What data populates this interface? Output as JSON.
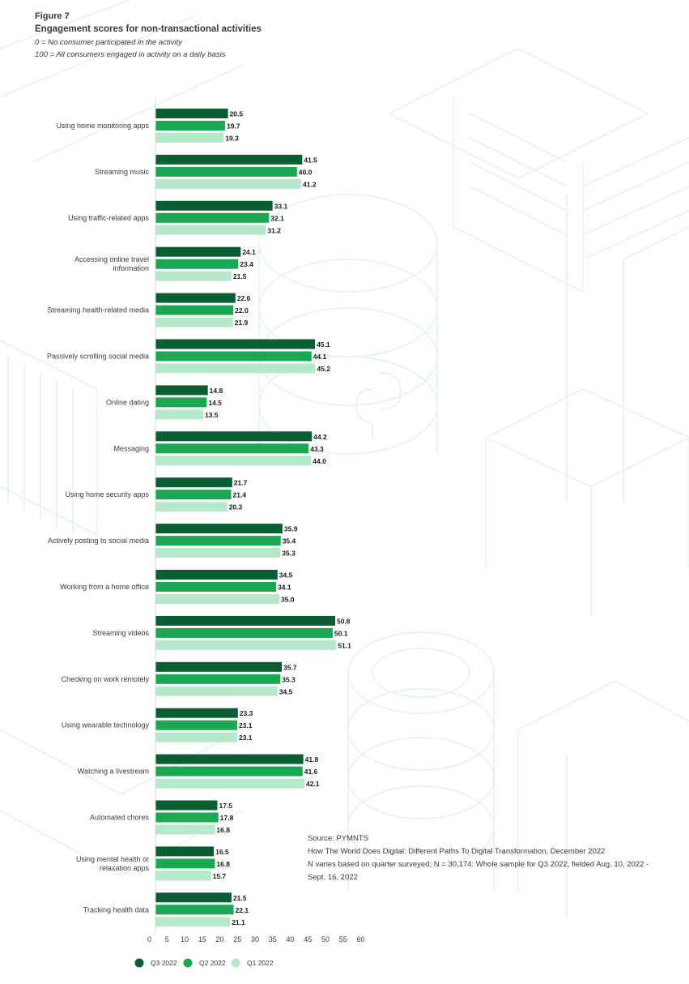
{
  "figure": {
    "number": "Figure 7",
    "title": "Engagement scores for non-transactional activities",
    "notes": [
      "0 = No consumer participated in the activity",
      "100 = All consumers engaged in activity on a daily basis"
    ]
  },
  "source": {
    "lines": [
      "Source: PYMNTS",
      "How The World Does Digital: Different Paths To Digital Transformation, December 2022",
      "N varies based on quarter surveyed; N = 30,174: Whole sample for Q3 2022, fielded Aug. 10, 2022  -",
      "Sept. 16, 2022"
    ]
  },
  "chart_data": {
    "type": "bar",
    "orientation": "horizontal",
    "title": "Engagement scores for non-transactional activities",
    "xlabel": "",
    "ylabel": "",
    "xlim": [
      0,
      60
    ],
    "xticks": [
      0,
      5,
      10,
      15,
      20,
      25,
      30,
      35,
      40,
      45,
      50,
      55,
      60
    ],
    "grid": false,
    "legend_position": "bottom-left",
    "categories": [
      [
        "Using home monitoring apps"
      ],
      [
        "Streaming music"
      ],
      [
        "Using traffic-related apps"
      ],
      [
        "Accessing online travel",
        "information"
      ],
      [
        "Streaming health-related media"
      ],
      [
        "Passively scrolling social media"
      ],
      [
        "Online dating"
      ],
      [
        "Messaging"
      ],
      [
        "Using home security apps"
      ],
      [
        "Actively posting to social media"
      ],
      [
        "Working from a home office"
      ],
      [
        "Streaming videos"
      ],
      [
        "Checking on work remotely"
      ],
      [
        "Using wearable technology"
      ],
      [
        "Watching a livestream"
      ],
      [
        "Automated chores"
      ],
      [
        "Using mental health or",
        "relaxation apps"
      ],
      [
        "Tracking health data"
      ]
    ],
    "series": [
      {
        "name": "Q3 2022",
        "color": "#0b5e31",
        "values": [
          20.5,
          41.5,
          33.1,
          24.1,
          22.6,
          45.1,
          14.8,
          44.2,
          21.7,
          35.9,
          34.5,
          50.8,
          35.7,
          23.3,
          41.8,
          17.5,
          16.5,
          21.5
        ]
      },
      {
        "name": "Q2 2022",
        "color": "#1aa952",
        "values": [
          19.7,
          40.0,
          32.1,
          23.4,
          22.0,
          44.1,
          14.5,
          43.3,
          21.4,
          35.4,
          34.1,
          50.1,
          35.3,
          23.1,
          41.6,
          17.8,
          16.8,
          22.1
        ]
      },
      {
        "name": "Q1  2022",
        "color": "#b6e8cc",
        "values": [
          19.3,
          41.2,
          31.2,
          21.5,
          21.9,
          45.2,
          13.5,
          44.0,
          20.3,
          35.3,
          35.0,
          51.1,
          34.5,
          23.1,
          42.1,
          16.8,
          15.7,
          21.1
        ]
      }
    ]
  }
}
